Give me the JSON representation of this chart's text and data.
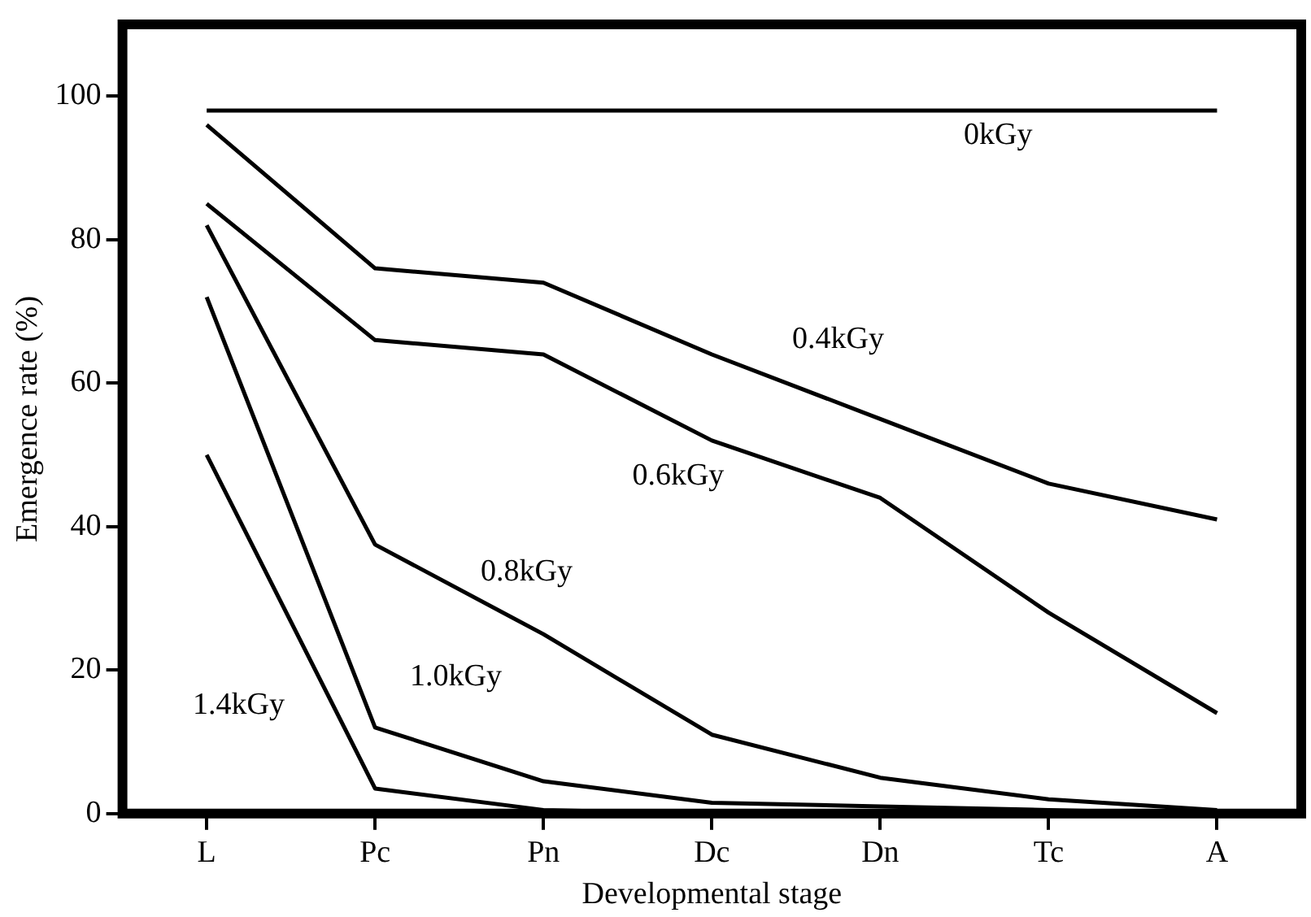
{
  "chart_data": {
    "type": "line",
    "xlabel": "Developmental stage",
    "ylabel": "Emergence rate (%)",
    "categories": [
      "L",
      "Pc",
      "Pn",
      "Dc",
      "Dn",
      "Tc",
      "A"
    ],
    "ylim": [
      0,
      110
    ],
    "yticks": [
      0,
      20,
      40,
      60,
      80,
      100
    ],
    "grid": false,
    "legend": false,
    "marker": "none",
    "line_style": "solid",
    "series": [
      {
        "color": "#000000",
        "values": [
          98,
          98,
          98,
          98,
          98,
          98,
          98
        ]
      },
      {
        "color": "#000000",
        "values": [
          96,
          76,
          74,
          64,
          55,
          46,
          41
        ]
      },
      {
        "color": "#000000",
        "values": [
          85,
          66,
          64,
          52,
          44,
          28,
          14
        ]
      },
      {
        "color": "#000000",
        "values": [
          82,
          37.5,
          25,
          11,
          5,
          2,
          0.5
        ]
      },
      {
        "color": "#000000",
        "values": [
          72,
          12,
          4.5,
          1.5,
          1,
          0.5,
          0
        ]
      },
      {
        "color": "#000000",
        "values": [
          50,
          3.5,
          0.5,
          0,
          0,
          0,
          0
        ]
      }
    ],
    "annotations": [
      "0kGy",
      "0.4kGy",
      "0.6kGy",
      "0.8kGy",
      "1.0kGy",
      "1.4kGy"
    ]
  }
}
